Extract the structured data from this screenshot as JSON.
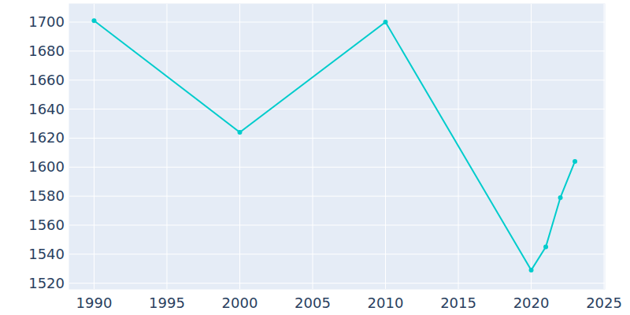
{
  "chart_data": {
    "type": "line",
    "x": [
      1990,
      2000,
      2010,
      2020,
      2021,
      2022,
      2023
    ],
    "values": [
      1701,
      1624,
      1700,
      1529,
      1545,
      1579,
      1604
    ],
    "color": "#00cccc",
    "marker": "circle",
    "xlim": [
      1988.3,
      2025.05
    ],
    "xticks": [
      1990,
      1995,
      2000,
      2005,
      2010,
      2015,
      2020,
      2025
    ],
    "ylim": [
      1516,
      1712.5
    ],
    "yticks": [
      1520,
      1540,
      1560,
      1580,
      1600,
      1620,
      1640,
      1660,
      1680,
      1700
    ],
    "grid": true
  }
}
